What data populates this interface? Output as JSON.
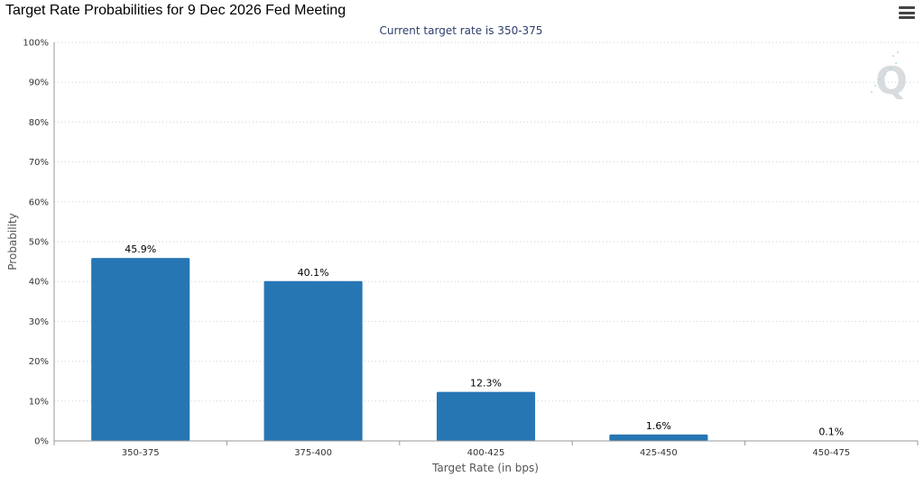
{
  "header": {
    "title": "Target Rate Probabilities for 9 Dec 2026 Fed Meeting",
    "menu_icon": "hamburger-menu-icon"
  },
  "watermark": "Q",
  "colors": {
    "bar": "#2776b4",
    "grid": "#cfcfcf",
    "axis": "#999999"
  },
  "chart_data": {
    "type": "bar",
    "subtitle": "Current target rate is 350-375",
    "categories": [
      "350-375",
      "375-400",
      "400-425",
      "425-450",
      "450-475"
    ],
    "values": [
      45.9,
      40.1,
      12.3,
      1.6,
      0.1
    ],
    "data_labels": [
      "45.9%",
      "40.1%",
      "12.3%",
      "1.6%",
      "0.1%"
    ],
    "xlabel": "Target Rate (in bps)",
    "ylabel": "Probability",
    "ylim": [
      0,
      100
    ],
    "yticks": [
      "0%",
      "10%",
      "20%",
      "30%",
      "40%",
      "50%",
      "60%",
      "70%",
      "80%",
      "90%",
      "100%"
    ],
    "grid": true
  }
}
